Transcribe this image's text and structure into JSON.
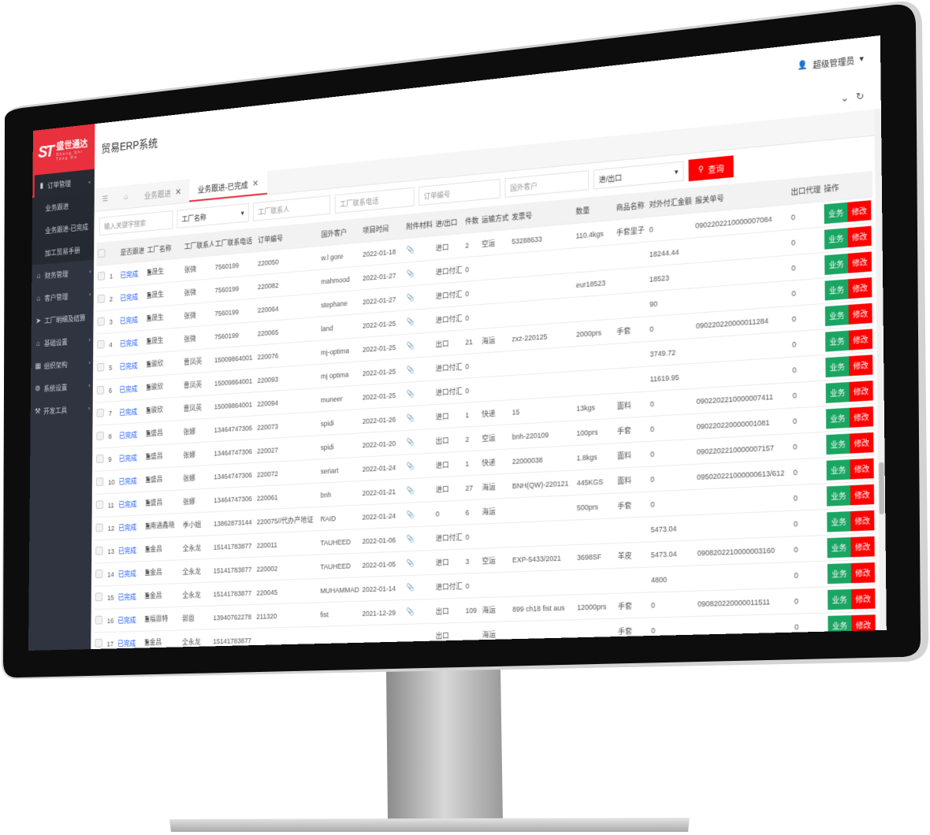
{
  "brand": {
    "logo_mark": "ST",
    "name": "盛世通达",
    "sub": "Sheng Shi Tong Da",
    "color": "#e8313d"
  },
  "header": {
    "title": "贸易ERP系统",
    "user": "超级管理员",
    "icons": [
      "chevron-circle-down-icon",
      "refresh-icon"
    ]
  },
  "sidebar": {
    "items": [
      {
        "label": "订单管理",
        "icon": "book-icon",
        "open": true,
        "children": [
          {
            "label": "业务跟进"
          },
          {
            "label": "业务跟进-已完成"
          },
          {
            "label": "加工贸易手册"
          }
        ]
      },
      {
        "label": "财务管理",
        "icon": "home-icon"
      },
      {
        "label": "客户管理",
        "icon": "home-icon"
      },
      {
        "label": "工厂明细及结算",
        "icon": "send-icon"
      },
      {
        "label": "基础设置",
        "icon": "home-icon"
      },
      {
        "label": "组织架构",
        "icon": "org-icon"
      },
      {
        "label": "系统设置",
        "icon": "gear-icon"
      },
      {
        "label": "开发工具",
        "icon": "hammer-icon"
      }
    ]
  },
  "tabs": [
    {
      "label": "业务跟进",
      "active": false
    },
    {
      "label": "业务跟进-已完成",
      "active": true
    }
  ],
  "filters": {
    "keyword": "输入关键字搜索",
    "factory": "工厂名称",
    "contact": "工厂联系人",
    "phone": "工厂联系电话",
    "order": "订单编号",
    "customer": "国外客户",
    "io": "进/出口",
    "search": "查询"
  },
  "table": {
    "columns": [
      "",
      "",
      "是否跟进",
      "工厂名称",
      "工厂联系人",
      "工厂联系电话",
      "订单编号",
      "国外客户",
      "项目时间",
      "附件材料",
      "进/出口",
      "件数",
      "运输方式",
      "发票号",
      "数量",
      "商品名称",
      "对外付汇金额",
      "报关单号",
      "出口代理",
      "操作"
    ],
    "buttons": {
      "biz": "业务",
      "edit": "修改"
    },
    "rows": [
      {
        "n": "1",
        "status": "已完成",
        "factory": "晟生",
        "contact": "张微",
        "phone": "7560199",
        "order": "220050",
        "customer": "w.l gore",
        "date": "2022-01-18",
        "io": "进口",
        "pieces": "2",
        "transport": "空运",
        "invoice": "53288633",
        "qty": "110.4kgs",
        "goods": "手套里子",
        "amount": "0",
        "customs": "0902202210000007084",
        "agent": "0"
      },
      {
        "n": "2",
        "status": "已完成",
        "factory": "晟生",
        "contact": "张微",
        "phone": "7560199",
        "order": "220082",
        "customer": "mahmood",
        "date": "2022-01-27",
        "io": "进口付汇",
        "pieces": "0",
        "transport": "",
        "invoice": "",
        "qty": "",
        "goods": "",
        "amount": "18244.44",
        "customs": "",
        "agent": "0"
      },
      {
        "n": "3",
        "status": "已完成",
        "factory": "晟生",
        "contact": "张微",
        "phone": "7560199",
        "order": "220064",
        "customer": "stephane",
        "date": "2022-01-27",
        "io": "进口付汇",
        "pieces": "0",
        "transport": "",
        "invoice": "",
        "qty": "eur18523",
        "goods": "",
        "amount": "18523",
        "customs": "",
        "agent": "0"
      },
      {
        "n": "4",
        "status": "已完成",
        "factory": "晟生",
        "contact": "张微",
        "phone": "7560199",
        "order": "220065",
        "customer": "land",
        "date": "2022-01-25",
        "io": "进口付汇",
        "pieces": "0",
        "transport": "",
        "invoice": "",
        "qty": "",
        "goods": "",
        "amount": "90",
        "customs": "",
        "agent": "0"
      },
      {
        "n": "5",
        "status": "已完成",
        "factory": "骏欣",
        "contact": "曹凤英",
        "phone": "15009864001",
        "order": "220076",
        "customer": "mj-optima",
        "date": "2022-01-25",
        "io": "出口",
        "pieces": "21",
        "transport": "海运",
        "invoice": "zxz-220125",
        "qty": "2000prs",
        "goods": "手套",
        "amount": "0",
        "customs": "090220220000011284",
        "agent": "0"
      },
      {
        "n": "6",
        "status": "已完成",
        "factory": "骏欣",
        "contact": "曹凤英",
        "phone": "15009864001",
        "order": "220093",
        "customer": "mj optima",
        "date": "2022-01-25",
        "io": "进口付汇",
        "pieces": "0",
        "transport": "",
        "invoice": "",
        "qty": "",
        "goods": "",
        "amount": "3749.72",
        "customs": "",
        "agent": "0"
      },
      {
        "n": "7",
        "status": "已完成",
        "factory": "骏欣",
        "contact": "曹凤英",
        "phone": "15009864001",
        "order": "220094",
        "customer": "muneer",
        "date": "2022-01-25",
        "io": "进口付汇",
        "pieces": "0",
        "transport": "",
        "invoice": "",
        "qty": "",
        "goods": "",
        "amount": "11619.95",
        "customs": "",
        "agent": "0"
      },
      {
        "n": "8",
        "status": "已完成",
        "factory": "盛昌",
        "contact": "张娜",
        "phone": "13464747306",
        "order": "220073",
        "customer": "spidi",
        "date": "2022-01-26",
        "io": "进口",
        "pieces": "1",
        "transport": "快递",
        "invoice": "15",
        "qty": "13kgs",
        "goods": "面料",
        "amount": "0",
        "customs": "0902202210000007411",
        "agent": "0"
      },
      {
        "n": "9",
        "status": "已完成",
        "factory": "盛昌",
        "contact": "张娜",
        "phone": "13464747306",
        "order": "220027",
        "customer": "spidi",
        "date": "2022-01-20",
        "io": "出口",
        "pieces": "2",
        "transport": "空运",
        "invoice": "bnh-220109",
        "qty": "100prs",
        "goods": "手套",
        "amount": "0",
        "customs": "090220220000001081",
        "agent": "0"
      },
      {
        "n": "10",
        "status": "已完成",
        "factory": "盛昌",
        "contact": "张娜",
        "phone": "13464747306",
        "order": "220072",
        "customer": "seriart",
        "date": "2022-01-24",
        "io": "进口",
        "pieces": "1",
        "transport": "快递",
        "invoice": "22000038",
        "qty": "1.8kgs",
        "goods": "面料",
        "amount": "0",
        "customs": "0902202210000007157",
        "agent": "0"
      },
      {
        "n": "11",
        "status": "已完成",
        "factory": "盛昌",
        "contact": "张娜",
        "phone": "13464747306",
        "order": "220061",
        "customer": "bnh",
        "date": "2022-01-21",
        "io": "进口",
        "pieces": "27",
        "transport": "海运",
        "invoice": "BNH(QW)-220121",
        "qty": "445KGS",
        "goods": "面料",
        "amount": "0",
        "customs": "095020221000000613/612",
        "agent": "0"
      },
      {
        "n": "12",
        "status": "已完成",
        "factory": "南通鑫晓",
        "contact": "季小姐",
        "phone": "13862873144",
        "order": "220075//代办产地证",
        "customer": "RAID",
        "date": "2022-01-24",
        "io": "0",
        "pieces": "6",
        "transport": "海运",
        "invoice": "",
        "qty": "500prs",
        "goods": "手套",
        "amount": "0",
        "customs": "",
        "agent": "0"
      },
      {
        "n": "13",
        "status": "已完成",
        "factory": "金昌",
        "contact": "全永龙",
        "phone": "15141783877",
        "order": "220011",
        "customer": "TAUHEED",
        "date": "2022-01-06",
        "io": "进口付汇",
        "pieces": "0",
        "transport": "",
        "invoice": "",
        "qty": "",
        "goods": "",
        "amount": "5473.04",
        "customs": "",
        "agent": "0"
      },
      {
        "n": "14",
        "status": "已完成",
        "factory": "金昌",
        "contact": "全永龙",
        "phone": "15141783877",
        "order": "220002",
        "customer": "TAUHEED",
        "date": "2022-01-05",
        "io": "进口",
        "pieces": "3",
        "transport": "空运",
        "invoice": "EXP-5433/2021",
        "qty": "3698SF",
        "goods": "羊皮",
        "amount": "5473.04",
        "customs": "0908202210000003160",
        "agent": "0"
      },
      {
        "n": "15",
        "status": "已完成",
        "factory": "金昌",
        "contact": "全永龙",
        "phone": "15141783877",
        "order": "220045",
        "customer": "MUHAMMAD",
        "date": "2022-01-14",
        "io": "进口付汇",
        "pieces": "0",
        "transport": "",
        "invoice": "",
        "qty": "",
        "goods": "",
        "amount": "4800",
        "customs": "",
        "agent": "0"
      },
      {
        "n": "16",
        "status": "已完成",
        "factory": "福恩特",
        "contact": "郭恩",
        "phone": "13940762278",
        "order": "211320",
        "customer": "fist",
        "date": "2021-12-29",
        "io": "出口",
        "pieces": "109",
        "transport": "海运",
        "invoice": "899 ch18 fist aus",
        "qty": "12000prs",
        "goods": "手套",
        "amount": "0",
        "customs": "090820220000011511",
        "agent": "0"
      },
      {
        "n": "17",
        "status": "已完成",
        "factory": "金昌",
        "contact": "全永龙",
        "phone": "15141783877",
        "order": "",
        "customer": "",
        "date": "",
        "io": "出口",
        "pieces": "",
        "transport": "海运",
        "invoice": "",
        "qty": "",
        "goods": "手套",
        "amount": "0",
        "customs": "",
        "agent": "0"
      }
    ]
  }
}
